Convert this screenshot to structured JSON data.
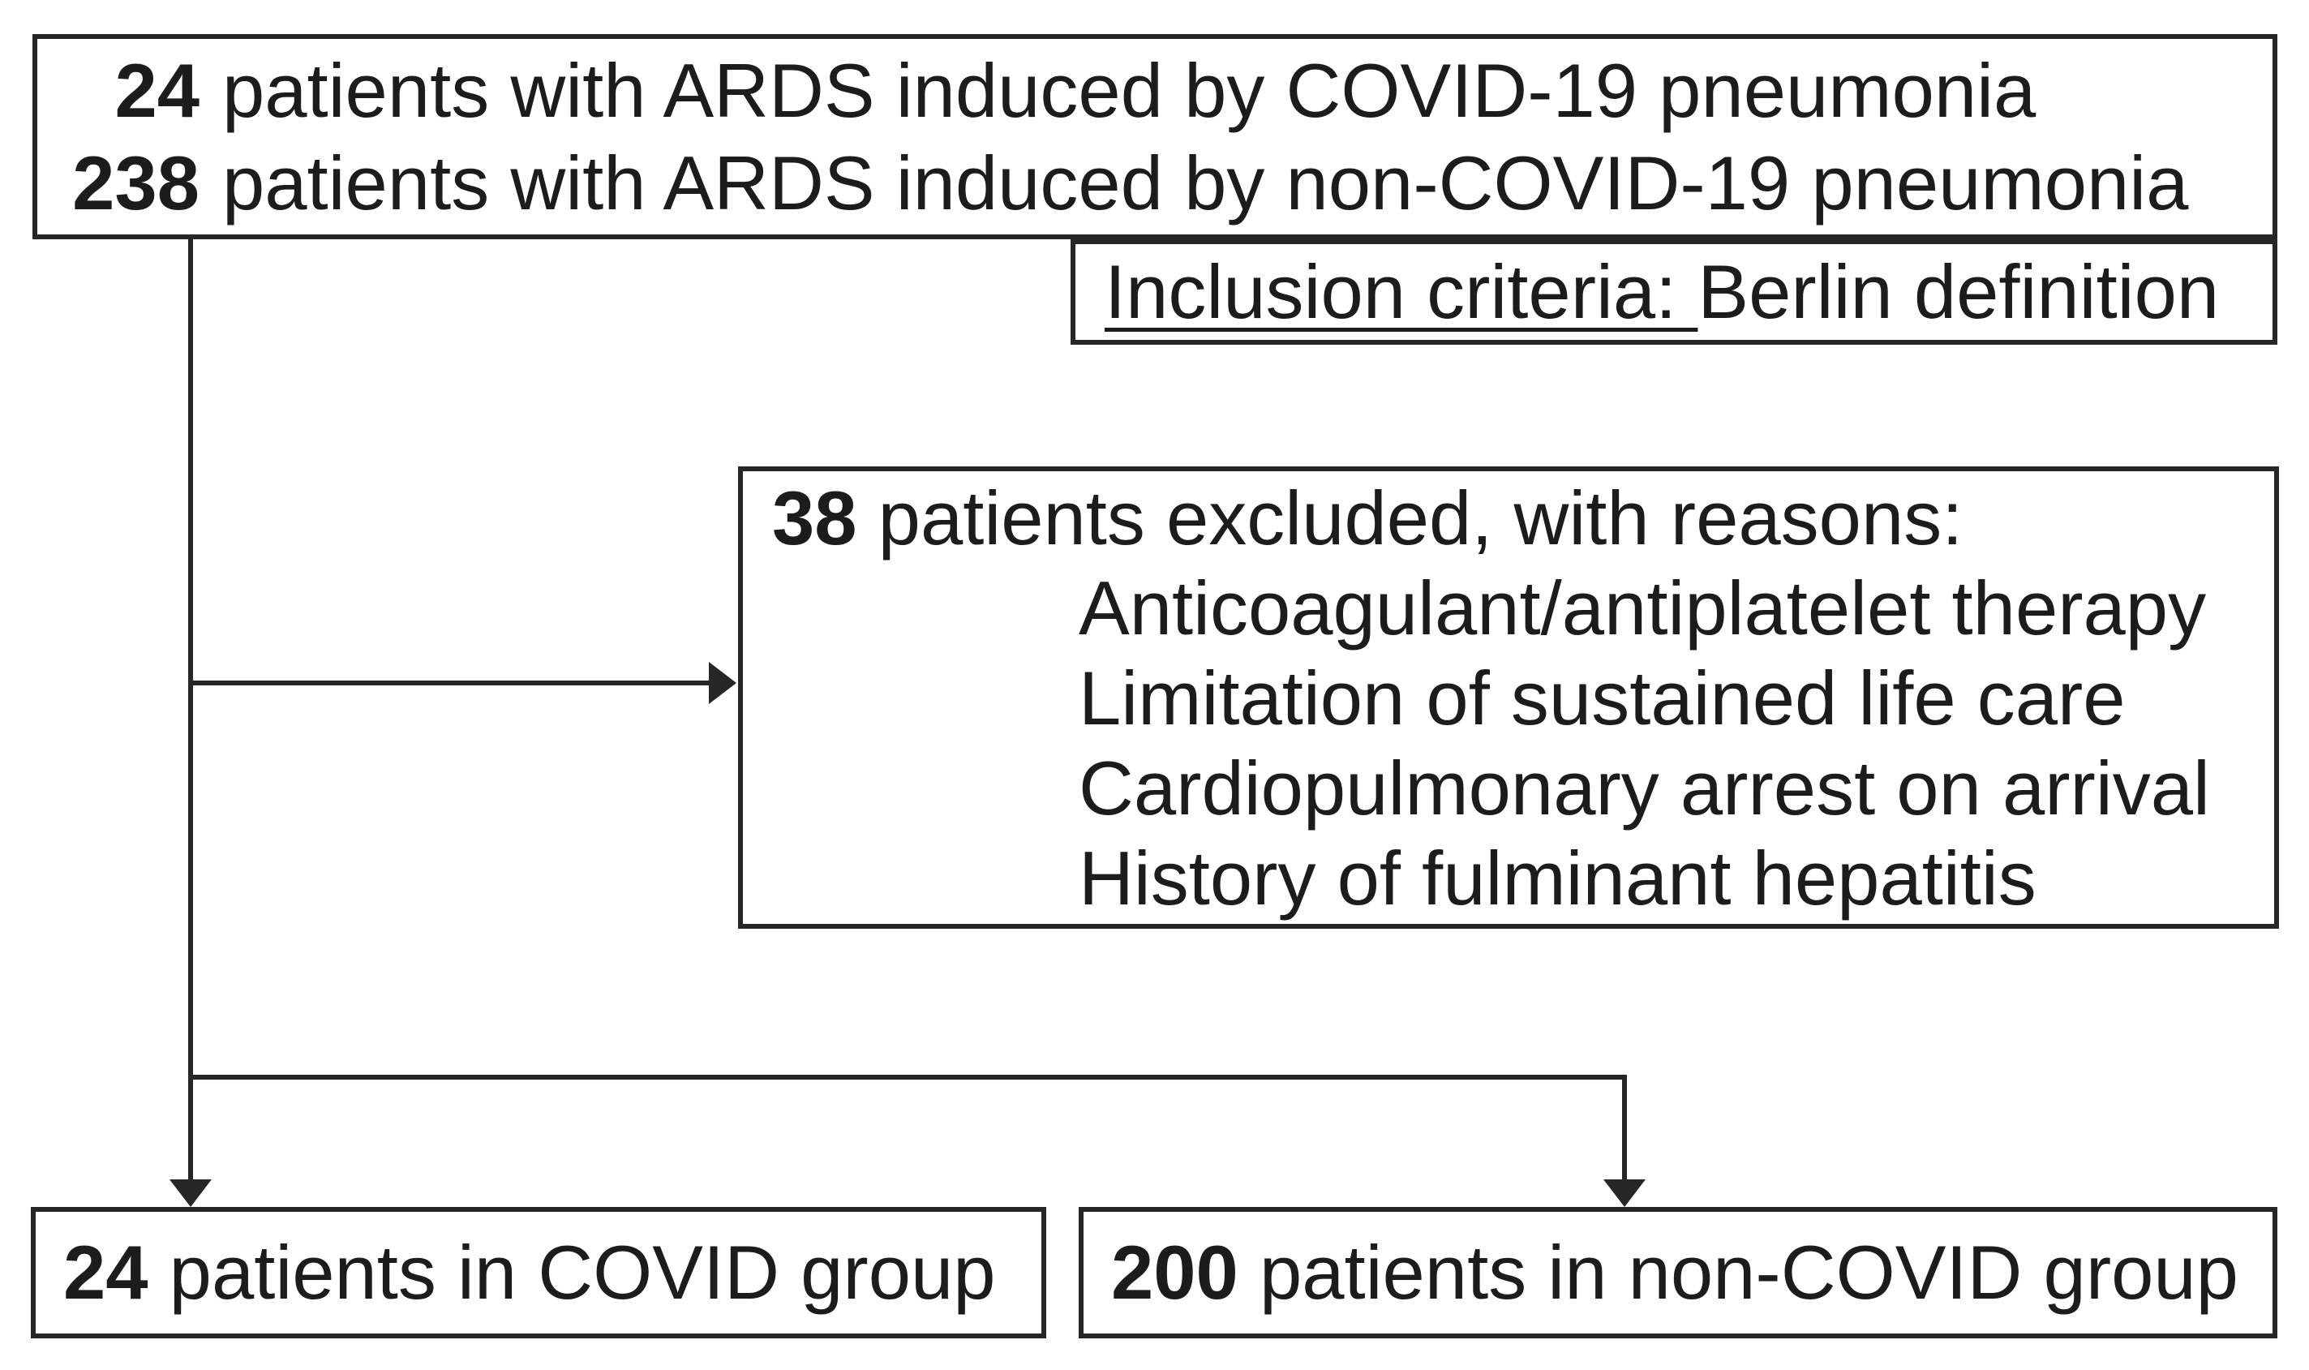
{
  "colors": {
    "border": "#262626",
    "text": "#1c1c1c",
    "background": "#ffffff"
  },
  "enrollment_box": {
    "lines": [
      {
        "count": "24",
        "text": "patients with ARDS induced by COVID-19 pneumonia"
      },
      {
        "count": "238",
        "text": "patients with ARDS induced by non-COVID-19 pneumonia"
      }
    ]
  },
  "inclusion_box": {
    "label_underlined": "Inclusion criteria: ",
    "label_rest": "Berlin definition"
  },
  "exclusion_box": {
    "count": "38",
    "text": " patients excluded, with reasons:",
    "reasons": [
      "Anticoagulant/antiplatelet therapy",
      "Limitation of sustained life care",
      "Cardiopulmonary arrest on arrival",
      "History of fulminant hepatitis"
    ]
  },
  "covid_group_box": {
    "count": "24",
    "text": " patients in COVID group"
  },
  "non_covid_group_box": {
    "count": "200",
    "text": " patients in non-COVID group"
  }
}
